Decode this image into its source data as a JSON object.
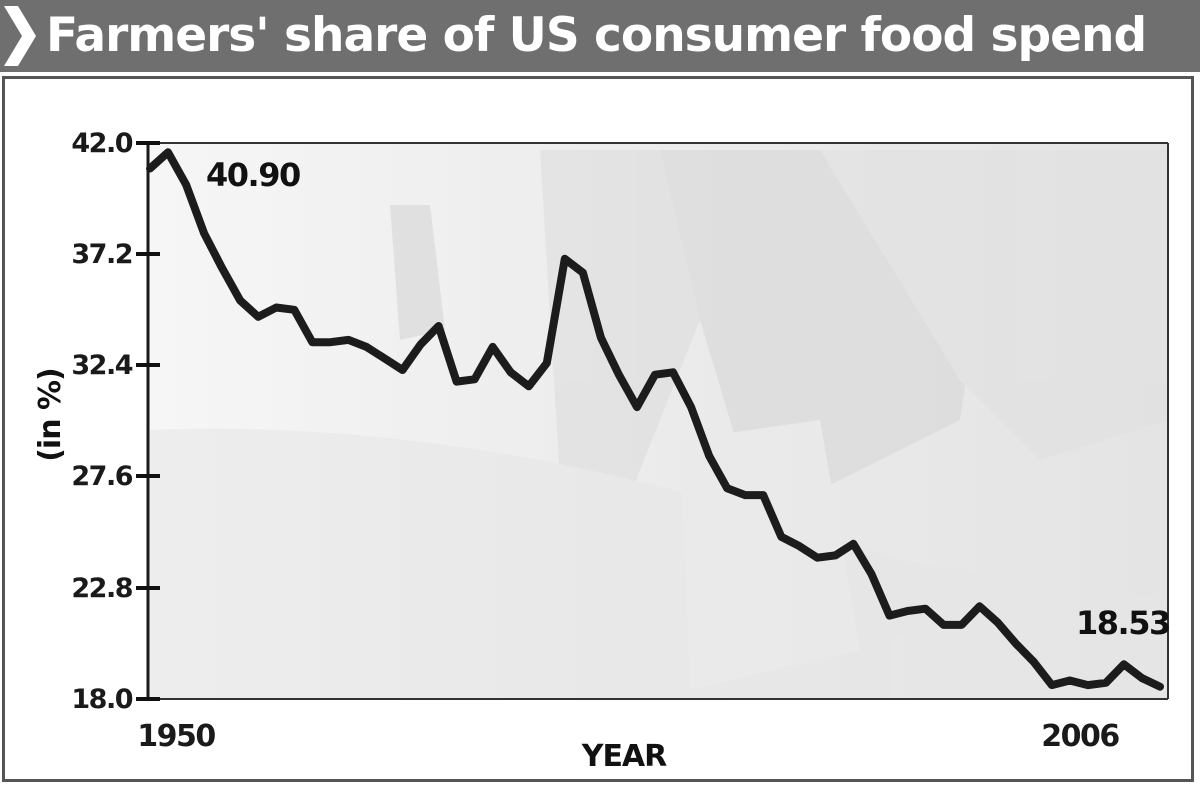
{
  "header": {
    "title": "Farmers' share of US consumer food spend"
  },
  "colors": {
    "header_bg": "#6f6f6f",
    "line": "#1c1c1c",
    "plot_bg": "#eeeeee"
  },
  "chart_data": {
    "type": "line",
    "title": "Farmers' share of US consumer food spend",
    "xlabel": "YEAR",
    "ylabel": "(in %)",
    "ylim": [
      18.0,
      42.0
    ],
    "xlim": [
      1950,
      2006
    ],
    "y_ticks": [
      "42.0",
      "37.2",
      "32.4",
      "27.6",
      "22.8",
      "18.0"
    ],
    "x_tick_labels": [
      {
        "year": 1950,
        "label": "1950"
      },
      {
        "year": 2006,
        "label": "2006"
      }
    ],
    "annotations": [
      {
        "year": 1950,
        "label": "40.90"
      },
      {
        "year": 2006,
        "label": "18.53"
      }
    ],
    "grid": false,
    "series": [
      {
        "x": [
          1950,
          1951,
          1952,
          1953,
          1954,
          1955,
          1956,
          1957,
          1958,
          1959,
          1960,
          1961,
          1962,
          1963,
          1964,
          1965,
          1966,
          1967,
          1968,
          1969,
          1970,
          1971,
          1972,
          1973,
          1974,
          1975,
          1976,
          1977,
          1978,
          1979,
          1980,
          1981,
          1982,
          1983,
          1984,
          1985,
          1986,
          1987,
          1988,
          1989,
          1990,
          1991,
          1992,
          1993,
          1994,
          1995,
          1996,
          1997,
          1998,
          1999,
          2000,
          2001,
          2002,
          2003,
          2004,
          2005,
          2006
        ],
        "values": [
          40.9,
          41.6,
          40.2,
          38.1,
          36.6,
          35.2,
          34.5,
          34.9,
          34.8,
          33.4,
          33.4,
          33.5,
          33.2,
          32.7,
          32.2,
          33.3,
          34.1,
          31.7,
          31.8,
          33.2,
          32.1,
          31.5,
          32.5,
          37.0,
          36.4,
          33.6,
          32.0,
          30.6,
          32.0,
          32.1,
          30.6,
          28.5,
          27.1,
          26.8,
          26.8,
          25.0,
          24.6,
          24.1,
          24.2,
          24.7,
          23.4,
          21.6,
          21.8,
          21.9,
          21.2,
          21.2,
          22.0,
          21.3,
          20.4,
          19.6,
          18.6,
          18.8,
          18.6,
          18.7,
          19.5,
          18.9,
          18.53
        ]
      }
    ]
  }
}
